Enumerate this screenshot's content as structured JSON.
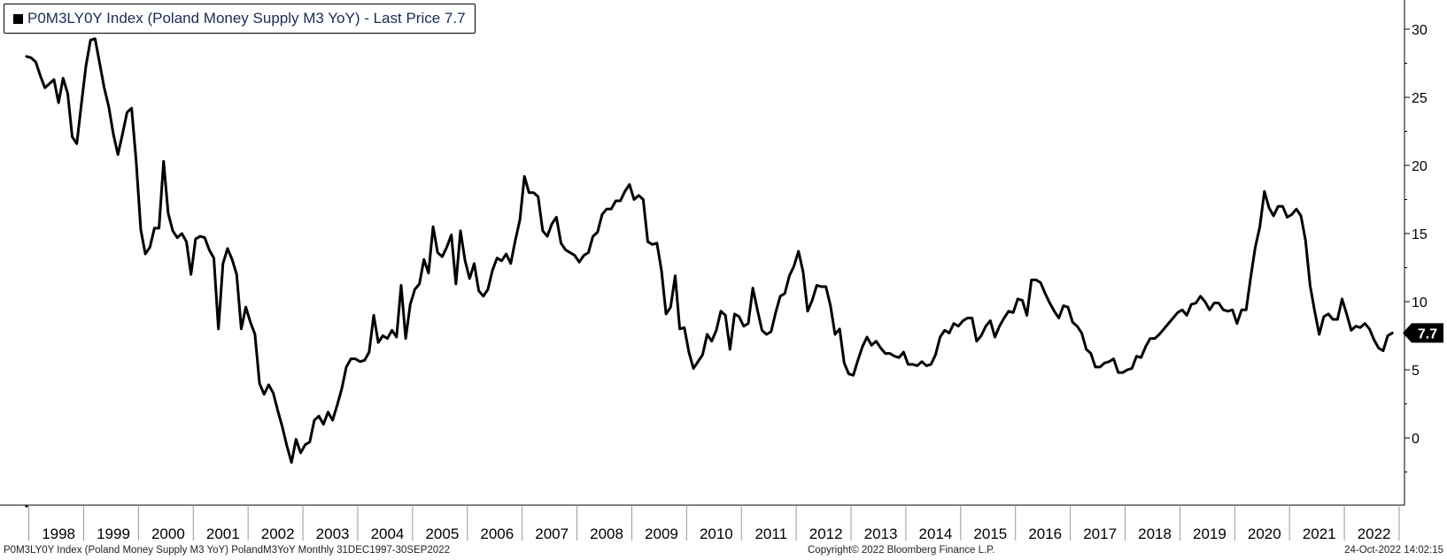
{
  "legend": {
    "text": "P0M3LY0Y Index (Poland Money Supply M3 YoY) - Last Price 7.7",
    "color": "#000000"
  },
  "footer": {
    "left": "P0M3LY0Y Index (Poland Money Supply M3 YoY) PolandM3YoY  Monthly 31DEC1997-30SEP2022",
    "center": "Copyright© 2022 Bloomberg Finance L.P.",
    "right": "24-Oct-2022 14:02:15"
  },
  "chart_data": {
    "type": "line",
    "series": [
      {
        "name": "P0M3LY0Y Index (Poland Money Supply M3 YoY)",
        "color": "#000000",
        "x_start": "1997-12",
        "frequency": "monthly",
        "values": [
          28.0,
          27.9,
          27.6,
          26.6,
          25.7,
          26.0,
          26.3,
          24.6,
          26.4,
          25.3,
          22.1,
          21.6,
          24.5,
          27.3,
          29.2,
          29.3,
          27.5,
          25.7,
          24.3,
          22.3,
          20.8,
          22.3,
          23.9,
          24.2,
          20.3,
          15.3,
          13.5,
          14.0,
          15.4,
          15.4,
          20.3,
          16.5,
          15.2,
          14.7,
          15.0,
          14.4,
          12.0,
          14.6,
          14.8,
          14.7,
          13.8,
          13.2,
          8.0,
          12.8,
          13.9,
          13.1,
          12.0,
          8.0,
          9.6,
          8.5,
          7.6,
          4.0,
          3.2,
          3.9,
          3.3,
          2.0,
          0.8,
          -0.6,
          -1.8,
          -0.1,
          -1.1,
          -0.5,
          -0.3,
          1.3,
          1.6,
          1.0,
          1.9,
          1.3,
          2.4,
          3.6,
          5.2,
          5.8,
          5.8,
          5.6,
          5.7,
          6.3,
          9.0,
          7.0,
          7.5,
          7.3,
          7.9,
          7.4,
          11.2,
          7.3,
          9.8,
          10.9,
          11.3,
          13.1,
          12.1,
          15.5,
          13.6,
          13.3,
          14.0,
          14.9,
          11.3,
          15.2,
          13.0,
          11.7,
          12.8,
          10.8,
          10.4,
          10.9,
          12.3,
          13.2,
          13.0,
          13.5,
          12.8,
          14.5,
          16.0,
          19.2,
          18.0,
          18.0,
          17.7,
          15.2,
          14.8,
          15.7,
          16.2,
          14.3,
          13.8,
          13.6,
          13.4,
          12.9,
          13.4,
          13.6,
          14.8,
          15.1,
          16.4,
          16.8,
          16.8,
          17.4,
          17.4,
          18.1,
          18.6,
          17.5,
          17.8,
          17.5,
          14.4,
          14.2,
          14.3,
          12.3,
          9.1,
          9.6,
          11.9,
          8.0,
          8.1,
          6.3,
          5.1,
          5.6,
          6.1,
          7.6,
          7.1,
          7.9,
          9.3,
          9.0,
          6.5,
          9.1,
          8.9,
          8.2,
          8.4,
          11.0,
          9.4,
          7.9,
          7.6,
          7.8,
          9.2,
          10.4,
          10.6,
          11.9,
          12.6,
          13.7,
          12.2,
          9.3,
          10.1,
          11.2,
          11.1,
          11.1,
          9.7,
          7.6,
          8.0,
          5.5,
          4.7,
          4.6,
          5.7,
          6.7,
          7.4,
          6.8,
          7.1,
          6.6,
          6.2,
          6.2,
          6.0,
          5.9,
          6.3,
          5.4,
          5.4,
          5.3,
          5.6,
          5.3,
          5.4,
          6.1,
          7.4,
          7.9,
          7.7,
          8.4,
          8.2,
          8.6,
          8.8,
          8.8,
          7.1,
          7.5,
          8.2,
          8.6,
          7.4,
          8.2,
          8.8,
          9.3,
          9.2,
          10.2,
          10.1,
          9.0,
          11.6,
          11.6,
          11.4,
          10.6,
          9.9,
          9.3,
          8.8,
          9.7,
          9.6,
          8.5,
          8.2,
          7.7,
          6.5,
          6.2,
          5.2,
          5.2,
          5.5,
          5.6,
          5.8,
          4.8,
          4.8,
          5.0,
          5.1,
          6.0,
          5.9,
          6.7,
          7.3,
          7.3,
          7.6,
          8.0,
          8.4,
          8.8,
          9.2,
          9.4,
          9.0,
          9.8,
          9.9,
          10.4,
          10.0,
          9.4,
          9.9,
          9.9,
          9.4,
          9.3,
          9.4,
          8.4,
          9.4,
          9.4,
          11.8,
          14.0,
          15.5,
          18.1,
          16.9,
          16.3,
          17.0,
          17.0,
          16.2,
          16.4,
          16.8,
          16.3,
          14.5,
          11.2,
          9.3,
          7.6,
          8.9,
          9.1,
          8.7,
          8.7,
          10.2,
          9.1,
          7.9,
          8.2,
          8.1,
          8.4,
          8.0,
          7.2,
          6.6,
          6.4,
          7.5,
          7.7
        ]
      }
    ],
    "x_tick_labels": [
      "1998",
      "1999",
      "2000",
      "2001",
      "2002",
      "2003",
      "2004",
      "2005",
      "2006",
      "2007",
      "2008",
      "2009",
      "2010",
      "2011",
      "2012",
      "2013",
      "2014",
      "2015",
      "2016",
      "2017",
      "2018",
      "2019",
      "2020",
      "2021",
      "2022"
    ],
    "y_tick_labels": [
      "0",
      "5",
      "10",
      "15",
      "20",
      "25",
      "30"
    ],
    "y_ticks": [
      0,
      5,
      10,
      15,
      20,
      25,
      30
    ],
    "ylim": [
      -5,
      32.5
    ],
    "y_axis_side": "right",
    "last_value_label": "7.7",
    "last_value_color": "#000000",
    "grid": false,
    "legend_placement": "top-left"
  }
}
